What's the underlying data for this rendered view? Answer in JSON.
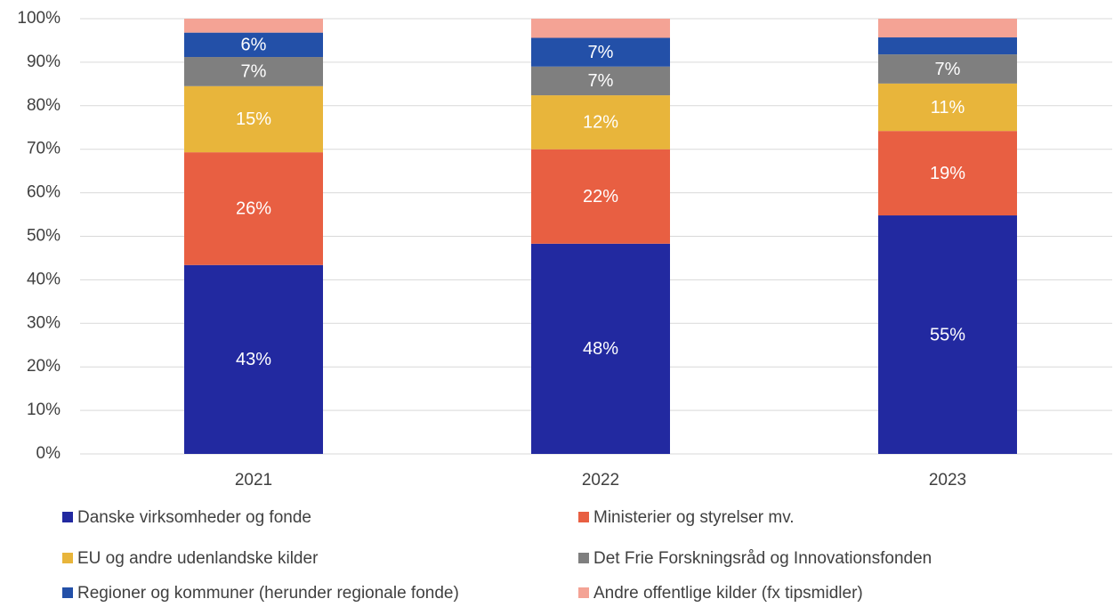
{
  "chart_data": {
    "type": "stacked_bar",
    "categories": [
      "2021",
      "2022",
      "2023"
    ],
    "series": [
      {
        "name": "Danske virksomheder og fonde",
        "color": "#2229a0",
        "values": [
          43.4,
          48.3,
          54.8
        ],
        "value_labels": [
          "43%",
          "48%",
          "55%"
        ]
      },
      {
        "name": "Ministerier og styrelser mv.",
        "color": "#e85f42",
        "values": [
          25.9,
          21.7,
          19.4
        ],
        "value_labels": [
          "26%",
          "22%",
          "19%"
        ]
      },
      {
        "name": "EU og andre udenlandske kilder",
        "color": "#e8b53b",
        "values": [
          15.2,
          12.4,
          10.9
        ],
        "value_labels": [
          "15%",
          "12%",
          "11%"
        ]
      },
      {
        "name": "Det Frie Forskningsråd og Innovationsfonden",
        "color": "#7f7f7f",
        "values": [
          6.7,
          6.6,
          6.7
        ],
        "value_labels": [
          "7%",
          "7%",
          "7%"
        ]
      },
      {
        "name": "Regioner og kommuner (herunder regionale fonde)",
        "color": "#2350a8",
        "values": [
          5.6,
          6.6,
          3.9
        ],
        "value_labels": [
          "6%",
          "7%",
          null
        ]
      },
      {
        "name": "Andre offentlige kilder (fx tipsmidler)",
        "color": "#f4a395",
        "values": [
          3.2,
          4.4,
          4.3
        ],
        "value_labels": [
          null,
          null,
          null
        ]
      }
    ],
    "ylim": [
      0,
      100
    ],
    "yticks": [
      {
        "value": 0,
        "label": "0%"
      },
      {
        "value": 10,
        "label": "10%"
      },
      {
        "value": 20,
        "label": "20%"
      },
      {
        "value": 30,
        "label": "30%"
      },
      {
        "value": 40,
        "label": "40%"
      },
      {
        "value": 50,
        "label": "50%"
      },
      {
        "value": 60,
        "label": "60%"
      },
      {
        "value": 70,
        "label": "70%"
      },
      {
        "value": 80,
        "label": "80%"
      },
      {
        "value": 90,
        "label": "90%"
      },
      {
        "value": 100,
        "label": "100%"
      }
    ],
    "grid": true,
    "legend": "bottom"
  }
}
